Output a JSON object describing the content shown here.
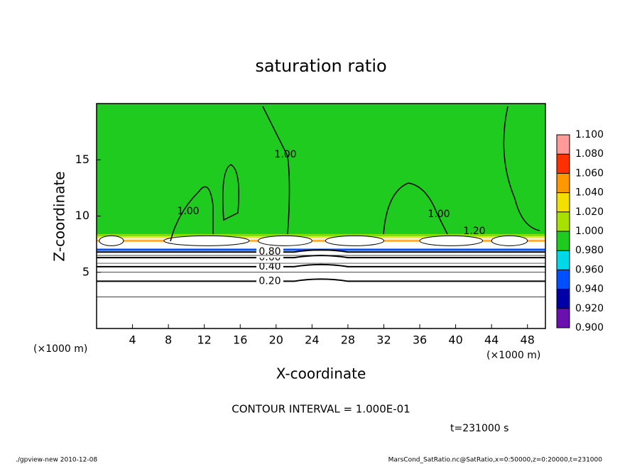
{
  "chart_data": {
    "type": "contour",
    "title": "saturation ratio",
    "x_label": "X-coordinate",
    "y_label": "Z-coordinate",
    "x_unit": "(×1000 m)",
    "xlim": [
      0,
      50
    ],
    "xticks": [
      4,
      8,
      12,
      16,
      20,
      24,
      28,
      32,
      36,
      40,
      44,
      48
    ],
    "ylim": [
      0,
      20
    ],
    "yticks": [
      5,
      10,
      15
    ],
    "colorbar": {
      "ticks": [
        {
          "value": 0.9,
          "label": "0.900"
        },
        {
          "value": 0.92,
          "label": "0.920"
        },
        {
          "value": 0.94,
          "label": "0.940"
        },
        {
          "value": 0.96,
          "label": "0.960"
        },
        {
          "value": 0.98,
          "label": "0.980"
        },
        {
          "value": 1.0,
          "label": "1.000"
        },
        {
          "value": 1.02,
          "label": "1.020"
        },
        {
          "value": 1.04,
          "label": "1.040"
        },
        {
          "value": 1.06,
          "label": "1.060"
        },
        {
          "value": 1.08,
          "label": "1.080"
        },
        {
          "value": 1.1,
          "label": "1.100"
        }
      ],
      "colors": [
        "#6a10b0",
        "#0000a8",
        "#0050ff",
        "#00d8e8",
        "#1ecb1e",
        "#a8e000",
        "#f4e000",
        "#ff9800",
        "#ff3000",
        "#ff9a9a"
      ]
    },
    "contours": [
      {
        "level": {
          "value": 0.2,
          "label": "0.20"
        },
        "z": 4.2
      },
      {
        "level": {
          "value": 0.4,
          "label": "0.40"
        },
        "z": 5.5
      },
      {
        "level": {
          "value": 0.6,
          "label": "0.60"
        },
        "z": 6.3
      },
      {
        "level": {
          "value": 0.8,
          "label": "0.80"
        },
        "z": 6.8
      }
    ],
    "annotations": {
      "contour_upper": {
        "value": 1.0,
        "label": "1.00"
      },
      "contour_high": {
        "value": 1.2,
        "label": "1.20"
      }
    },
    "contour_interval": "CONTOUR INTERVAL = 1.000E-01",
    "time": "t=231000 s",
    "footer_left": "./gpview-new  2010-12-08",
    "footer_right": "MarsCond_SatRatio.nc@SatRatio,x=0:50000,z=0:20000,t=231000"
  }
}
